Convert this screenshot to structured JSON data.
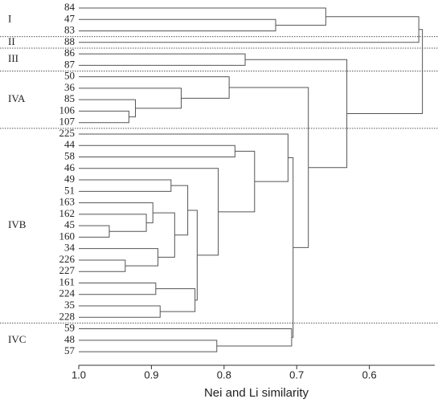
{
  "chart_data": {
    "type": "dendrogram",
    "x_label": "Nei and Li similarity",
    "xlim": [
      1.0,
      0.51
    ],
    "xticks": [
      {
        "value": 1,
        "label": "1.0"
      },
      0.9,
      0.8,
      0.7,
      0.6
    ],
    "groups": [
      "I",
      "II",
      "III",
      "IVA",
      "IVB",
      "IVC"
    ],
    "tree": {
      "height": 0.527,
      "children": [
        {
          "height": 0.532,
          "children": [
            {
              "height": 0.66,
              "children": [
                {
                  "label": "84"
                },
                {
                  "height": 0.729,
                  "children": [
                    {
                      "label": "47"
                    },
                    {
                      "label": "83"
                    }
                  ]
                }
              ]
            },
            {
              "label": "88"
            }
          ]
        },
        {
          "height": 0.631,
          "children": [
            {
              "height": 0.771,
              "children": [
                {
                  "label": "86"
                },
                {
                  "label": "87"
                }
              ]
            },
            {
              "height": 0.684,
              "children": [
                {
                  "height": 0.793,
                  "children": [
                    {
                      "label": "50"
                    },
                    {
                      "height": 0.859,
                      "children": [
                        {
                          "label": "36"
                        },
                        {
                          "height": 0.922,
                          "children": [
                            {
                              "label": "85"
                            },
                            {
                              "height": 0.931,
                              "children": [
                                {
                                  "label": "106"
                                },
                                {
                                  "label": "107"
                                }
                              ]
                            }
                          ]
                        }
                      ]
                    }
                  ]
                },
                {
                  "height": 0.705,
                  "children": [
                    {
                      "height": 0.712,
                      "children": [
                        {
                          "label": "225"
                        },
                        {
                          "height": 0.758,
                          "children": [
                            {
                              "height": 0.785,
                              "children": [
                                {
                                  "label": "44"
                                },
                                {
                                  "label": "58"
                                }
                              ]
                            },
                            {
                              "height": 0.808,
                              "children": [
                                {
                                  "label": "46"
                                },
                                {
                                  "height": 0.837,
                                  "children": [
                                    {
                                      "height": 0.85,
                                      "children": [
                                        {
                                          "height": 0.873,
                                          "children": [
                                            {
                                              "label": "49"
                                            },
                                            {
                                              "label": "51"
                                            }
                                          ]
                                        },
                                        {
                                          "height": 0.868,
                                          "children": [
                                            {
                                              "height": 0.898,
                                              "children": [
                                                {
                                                  "label": "163"
                                                },
                                                {
                                                  "height": 0.907,
                                                  "children": [
                                                    {
                                                      "label": "162"
                                                    },
                                                    {
                                                      "height": 0.958,
                                                      "children": [
                                                        {
                                                          "label": "45"
                                                        },
                                                        {
                                                          "label": "160"
                                                        }
                                                      ]
                                                    }
                                                  ]
                                                }
                                              ]
                                            },
                                            {
                                              "height": 0.891,
                                              "children": [
                                                {
                                                  "label": "34"
                                                },
                                                {
                                                  "height": 0.936,
                                                  "children": [
                                                    {
                                                      "label": "226"
                                                    },
                                                    {
                                                      "label": "227"
                                                    }
                                                  ]
                                                }
                                              ]
                                            }
                                          ]
                                        }
                                      ]
                                    },
                                    {
                                      "height": 0.84,
                                      "children": [
                                        {
                                          "height": 0.894,
                                          "children": [
                                            {
                                              "label": "161"
                                            },
                                            {
                                              "label": "224"
                                            }
                                          ]
                                        },
                                        {
                                          "height": 0.888,
                                          "children": [
                                            {
                                              "label": "35"
                                            },
                                            {
                                              "label": "228"
                                            }
                                          ]
                                        }
                                      ]
                                    }
                                  ]
                                }
                              ]
                            }
                          ]
                        }
                      ]
                    },
                    {
                      "height": 0.707,
                      "children": [
                        {
                          "label": "59"
                        },
                        {
                          "height": 0.81,
                          "children": [
                            {
                              "label": "48"
                            },
                            {
                              "label": "57"
                            }
                          ]
                        }
                      ]
                    }
                  ]
                }
              ]
            }
          ]
        }
      ]
    }
  }
}
